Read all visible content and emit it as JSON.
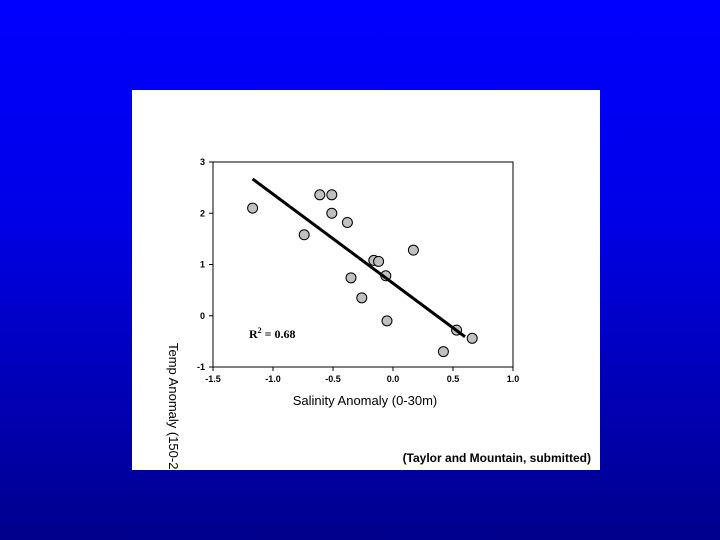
{
  "colors": {
    "background_top": "#0000ff",
    "background_bottom": "#00008c",
    "panel": "#ffffff",
    "marker_fill": "#c0c0c0",
    "line": "#000000"
  },
  "citation": "(Taylor and Mountain, submitted)",
  "chart_data": {
    "type": "scatter",
    "xlabel": "Salinity Anomaly (0-30m)",
    "ylabel": "Temp Anomaly (150-2",
    "xlim": [
      -1.5,
      1.0
    ],
    "ylim": [
      -1,
      3
    ],
    "x_ticks": [
      "-1.5",
      "-1.0",
      "-0.5",
      "0.0",
      "0.5",
      "1.0"
    ],
    "y_ticks": [
      "-1",
      "0",
      "1",
      "2",
      "3"
    ],
    "grid": false,
    "points": [
      {
        "x": -1.17,
        "y": 2.1
      },
      {
        "x": -0.74,
        "y": 1.58
      },
      {
        "x": -0.61,
        "y": 2.36
      },
      {
        "x": -0.51,
        "y": 2.36
      },
      {
        "x": -0.51,
        "y": 2.0
      },
      {
        "x": -0.38,
        "y": 1.82
      },
      {
        "x": -0.35,
        "y": 0.74
      },
      {
        "x": -0.26,
        "y": 0.35
      },
      {
        "x": -0.16,
        "y": 1.08
      },
      {
        "x": -0.12,
        "y": 1.06
      },
      {
        "x": -0.06,
        "y": 0.78
      },
      {
        "x": -0.05,
        "y": -0.1
      },
      {
        "x": 0.17,
        "y": 1.28
      },
      {
        "x": 0.42,
        "y": -0.7
      },
      {
        "x": 0.53,
        "y": -0.28
      },
      {
        "x": 0.66,
        "y": -0.44
      }
    ],
    "trendline": {
      "x": [
        -1.17,
        0.6
      ],
      "y": [
        2.67,
        -0.41
      ]
    },
    "annotation": {
      "base": "R",
      "superscript": "2",
      "rest": " = 0.68"
    }
  }
}
